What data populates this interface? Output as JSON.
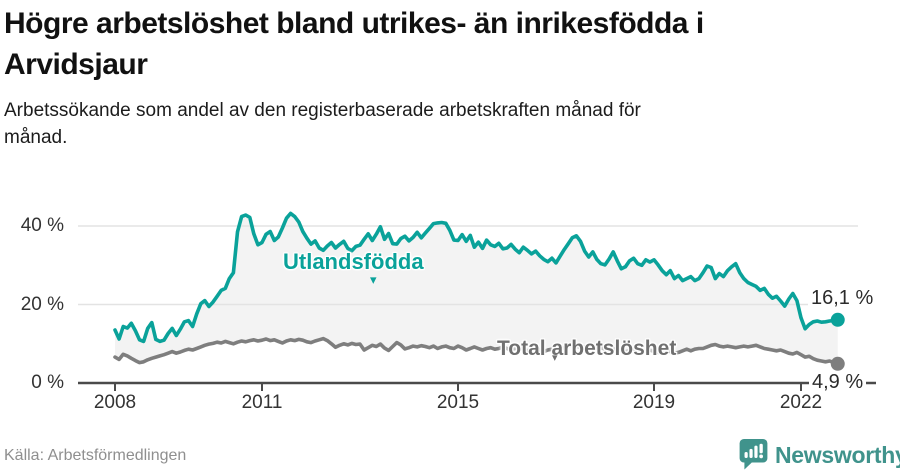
{
  "header": {
    "title": "Högre arbetslöshet bland utrikes- än inrikesfödda i Arvidsjaur",
    "subtitle": "Arbetssökande som andel av den registerbaserade arbetskraften månad för månad."
  },
  "footer": {
    "source": "Källa: Arbetsförmedlingen",
    "brand": "Newsworthy"
  },
  "colors": {
    "accent_teal": "#0aa29a",
    "series_gray": "#7e7e7e",
    "gray_label": "#707070",
    "brand_teal": "#40938c",
    "band_fill": "#f3f3f3",
    "grid": "#e3e3e3",
    "axis": "#4a4a4a"
  },
  "chart_data": {
    "type": "line",
    "title": "Högre arbetslöshet bland utrikes- än inrikesfödda i Arvidsjaur",
    "subtitle": "Arbetssökande som andel av den registerbaserade arbetskraften månad för månad.",
    "unit": "%",
    "x_start": "2008-01",
    "x_end": "2022-10",
    "x_step": "month",
    "ylim": [
      0,
      45
    ],
    "grid": "horizontal",
    "legend_position": "inline-labels",
    "x_ticks": [
      {
        "year": 2008,
        "label": "2008"
      },
      {
        "year": 2011,
        "label": "2011"
      },
      {
        "year": 2015,
        "label": "2015"
      },
      {
        "year": 2019,
        "label": "2019"
      },
      {
        "year": 2022,
        "label": "2022"
      }
    ],
    "y_ticks": [
      {
        "value": 40,
        "label": "40 %"
      },
      {
        "value": 20,
        "label": "20 %"
      },
      {
        "value": 0,
        "label": "0 %"
      }
    ],
    "series": [
      {
        "name": "Utlandsfödda",
        "color": "#0aa29a",
        "marker": "▾",
        "end_label": "16,1 %",
        "end_value": 16.1,
        "values": [
          13.5,
          11.2,
          14.4,
          14.0,
          15.2,
          13.3,
          11.0,
          10.6,
          13.9,
          15.4,
          11.1,
          10.6,
          10.9,
          12.6,
          13.9,
          12.1,
          13.7,
          15.6,
          15.9,
          14.4,
          17.6,
          20.2,
          21.0,
          19.5,
          20.6,
          22.1,
          23.6,
          24.1,
          26.6,
          28.1,
          38.5,
          42.4,
          42.8,
          42.2,
          38.0,
          35.2,
          35.8,
          37.9,
          38.6,
          36.3,
          37.2,
          39.5,
          42.0,
          43.2,
          42.4,
          41.0,
          38.6,
          36.9,
          35.4,
          36.2,
          34.4,
          33.8,
          34.9,
          35.8,
          34.4,
          35.3,
          36.1,
          34.3,
          33.7,
          34.8,
          35.1,
          36.6,
          38.0,
          36.3,
          37.9,
          39.8,
          36.6,
          38.1,
          35.5,
          35.4,
          36.8,
          37.4,
          36.2,
          37.1,
          38.4,
          37.0,
          38.2,
          39.4,
          40.6,
          40.8,
          40.9,
          40.7,
          38.9,
          36.4,
          36.3,
          37.8,
          36.1,
          37.6,
          34.6,
          35.9,
          34.3,
          36.4,
          35.2,
          34.8,
          35.6,
          34.2,
          34.4,
          35.3,
          34.1,
          33.2,
          34.6,
          33.8,
          32.9,
          33.6,
          32.4,
          31.5,
          30.9,
          31.8,
          30.6,
          32.3,
          34.0,
          35.5,
          37.0,
          37.5,
          36.1,
          33.6,
          32.1,
          33.4,
          31.5,
          30.4,
          30.1,
          31.6,
          33.4,
          31.1,
          29.1,
          29.6,
          31.1,
          31.8,
          30.4,
          30.0,
          31.4,
          30.8,
          31.4,
          30.1,
          28.6,
          27.6,
          28.6,
          26.6,
          27.4,
          26.1,
          26.6,
          27.1,
          26.1,
          26.6,
          28.1,
          29.8,
          29.4,
          26.6,
          27.9,
          27.1,
          28.6,
          29.6,
          30.4,
          28.1,
          26.6,
          25.6,
          25.1,
          24.6,
          23.6,
          24.1,
          22.6,
          21.6,
          22.1,
          20.9,
          19.6,
          21.4,
          22.8,
          21.0,
          16.6,
          13.8,
          14.9,
          15.6,
          15.8,
          15.5,
          15.6,
          15.8,
          15.9,
          16.1
        ]
      },
      {
        "name": "Total arbetslöshet",
        "color": "#7e7e7e",
        "marker": "▾",
        "end_label": "4,9 %",
        "end_value": 4.9,
        "values": [
          6.6,
          6.0,
          7.3,
          6.9,
          6.3,
          5.7,
          5.2,
          5.4,
          5.9,
          6.3,
          6.6,
          6.9,
          7.2,
          7.6,
          8.0,
          7.6,
          7.9,
          8.3,
          8.6,
          8.4,
          8.8,
          9.2,
          9.6,
          9.9,
          10.1,
          10.4,
          10.2,
          10.6,
          10.3,
          10.0,
          10.4,
          10.7,
          10.5,
          10.8,
          11.0,
          10.7,
          10.9,
          11.2,
          10.8,
          11.0,
          10.6,
          10.2,
          10.7,
          11.0,
          10.8,
          11.1,
          10.9,
          10.5,
          10.3,
          10.7,
          11.0,
          11.3,
          10.8,
          10.0,
          9.1,
          9.6,
          10.0,
          9.7,
          10.1,
          9.8,
          9.9,
          8.4,
          9.0,
          9.6,
          9.3,
          9.9,
          8.9,
          8.3,
          9.3,
          10.3,
          9.7,
          8.7,
          9.0,
          9.4,
          9.2,
          9.5,
          9.3,
          9.0,
          9.4,
          8.8,
          9.2,
          9.4,
          9.0,
          8.8,
          9.4,
          9.0,
          8.4,
          8.8,
          9.2,
          8.8,
          8.4,
          8.8,
          9.0,
          8.6,
          8.8,
          9.2,
          8.8,
          8.4,
          8.8,
          9.0,
          8.6,
          8.2,
          8.6,
          8.8,
          8.4,
          8.0,
          8.4,
          8.6,
          8.2,
          8.6,
          9.0,
          9.4,
          9.8,
          9.4,
          9.0,
          9.2,
          9.6,
          9.2,
          8.8,
          9.0,
          8.6,
          8.2,
          8.6,
          8.8,
          8.4,
          8.0,
          8.2,
          8.6,
          8.2,
          7.8,
          8.2,
          8.4,
          8.0,
          7.8,
          8.2,
          8.4,
          8.0,
          7.6,
          7.8,
          8.2,
          8.6,
          8.2,
          8.6,
          8.8,
          8.8,
          9.2,
          9.6,
          9.8,
          9.4,
          9.2,
          9.4,
          9.2,
          9.0,
          9.2,
          9.4,
          9.2,
          9.4,
          9.6,
          9.2,
          8.8,
          8.6,
          8.4,
          8.2,
          8.4,
          8.0,
          7.6,
          7.4,
          7.8,
          7.2,
          6.6,
          6.8,
          6.2,
          5.8,
          5.6,
          5.4,
          5.6,
          5.2,
          4.9
        ]
      }
    ]
  }
}
